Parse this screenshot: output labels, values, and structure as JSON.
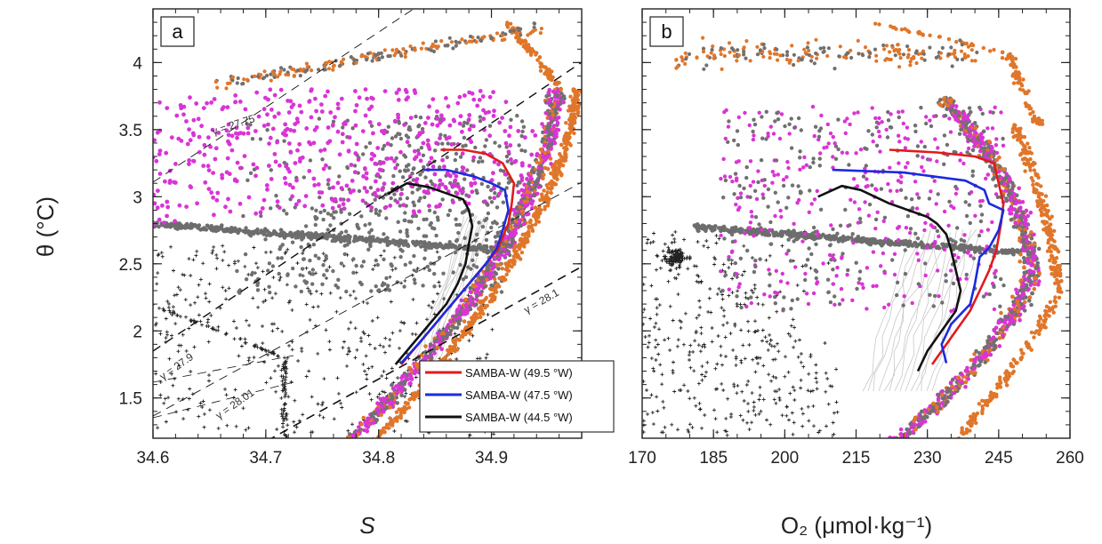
{
  "chart_data": [
    {
      "type": "scatter",
      "panel_label": "a",
      "xlabel": "S",
      "ylabel": "θ (°C)",
      "xlim": [
        34.6,
        34.98
      ],
      "ylim": [
        1.2,
        4.4
      ],
      "xticks": [
        "34.6",
        "34.7",
        "34.8",
        "34.9"
      ],
      "yticks": [
        "1.5",
        "2",
        "2.5",
        "3",
        "3.5",
        "4"
      ],
      "isopycnals": [
        {
          "label": "γ = 27.75"
        },
        {
          "label": "γ = 27.9"
        },
        {
          "label": "γ = 28.01"
        },
        {
          "label": "γ = 28.1"
        }
      ],
      "legend": {
        "position": "lower-right",
        "entries": [
          {
            "label": "SAMBA-W (49.5 °W)",
            "color": "#e01b1b"
          },
          {
            "label": "SAMBA-W (47.5 °W)",
            "color": "#1b2be0"
          },
          {
            "label": "SAMBA-W (44.5 °W)",
            "color": "#111111"
          }
        ]
      },
      "series": [
        {
          "name": "SAMBA-W (49.5 °W)",
          "color": "#e01b1b",
          "x": [
            34.82,
            34.83,
            34.845,
            34.86,
            34.875,
            34.89,
            34.905,
            34.915,
            34.918,
            34.92,
            34.91,
            34.895,
            34.875,
            34.855
          ],
          "y": [
            1.75,
            1.85,
            2.0,
            2.15,
            2.3,
            2.45,
            2.6,
            2.8,
            2.95,
            3.1,
            3.25,
            3.32,
            3.35,
            3.35
          ]
        },
        {
          "name": "SAMBA-W (47.5 °W)",
          "color": "#1b2be0",
          "x": [
            34.82,
            34.835,
            34.85,
            34.865,
            34.88,
            34.895,
            34.905,
            34.91,
            34.915,
            34.912,
            34.9,
            34.885,
            34.86,
            34.84
          ],
          "y": [
            1.76,
            1.9,
            2.05,
            2.2,
            2.35,
            2.5,
            2.62,
            2.75,
            2.9,
            3.05,
            3.1,
            3.15,
            3.2,
            3.2
          ]
        },
        {
          "name": "SAMBA-W (44.5 °W)",
          "color": "#111111",
          "x": [
            34.815,
            34.83,
            34.845,
            34.86,
            34.87,
            34.877,
            34.88,
            34.883,
            34.88,
            34.875,
            34.862,
            34.845,
            34.825,
            34.808
          ],
          "y": [
            1.75,
            1.9,
            2.05,
            2.2,
            2.35,
            2.5,
            2.65,
            2.78,
            2.9,
            2.98,
            3.02,
            3.07,
            3.1,
            3.02
          ]
        }
      ]
    },
    {
      "type": "scatter",
      "panel_label": "b",
      "xlabel": "O₂ (μmol·kg⁻¹)",
      "ylabel": "",
      "xlim": [
        170,
        260
      ],
      "ylim": [
        1.2,
        4.4
      ],
      "xticks": [
        "170",
        "185",
        "200",
        "215",
        "230",
        "245",
        "260"
      ],
      "yticks": [],
      "series": [
        {
          "name": "SAMBA-W (49.5 °W)",
          "color": "#e01b1b",
          "x": [
            231,
            233,
            236,
            239,
            241,
            243,
            244.5,
            245.5,
            246,
            245,
            244,
            240,
            232,
            222
          ],
          "y": [
            1.75,
            1.85,
            2.0,
            2.15,
            2.3,
            2.45,
            2.6,
            2.8,
            2.95,
            3.1,
            3.25,
            3.3,
            3.33,
            3.35
          ]
        },
        {
          "name": "SAMBA-W (47.5 °W)",
          "color": "#1b2be0",
          "x": [
            234,
            233,
            235,
            239,
            240,
            241,
            243,
            245,
            246,
            243,
            242,
            238,
            225,
            210
          ],
          "y": [
            1.76,
            1.9,
            2.05,
            2.2,
            2.35,
            2.55,
            2.62,
            2.75,
            2.9,
            2.95,
            3.05,
            3.12,
            3.18,
            3.2
          ]
        },
        {
          "name": "SAMBA-W (44.5 °W)",
          "color": "#111111",
          "x": [
            228,
            230,
            233,
            236,
            237,
            236,
            235,
            234,
            232,
            230,
            222,
            216,
            212,
            207
          ],
          "y": [
            1.7,
            1.85,
            2.0,
            2.15,
            2.3,
            2.45,
            2.6,
            2.72,
            2.8,
            2.85,
            2.95,
            3.05,
            3.08,
            3.0
          ]
        }
      ]
    }
  ]
}
